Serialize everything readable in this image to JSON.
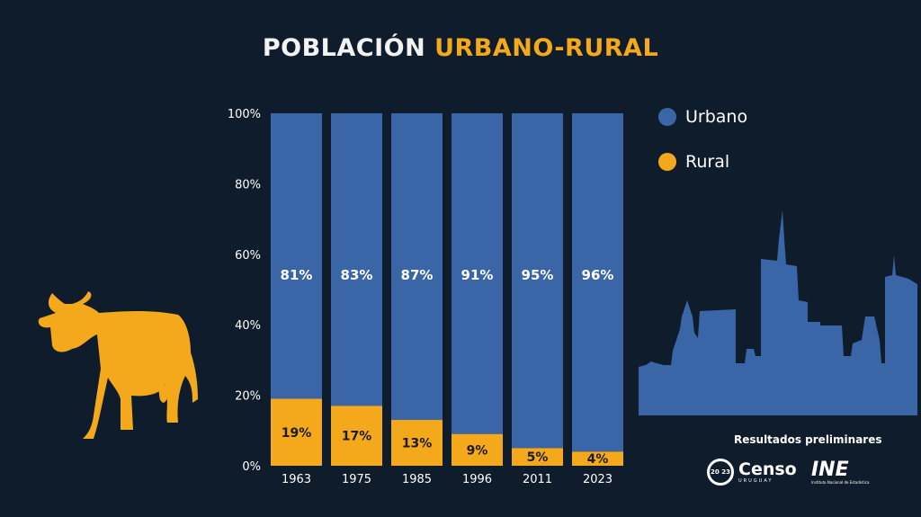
{
  "title": {
    "part1": "POBLACIÓN",
    "part2": "URBANO-RURAL"
  },
  "colors": {
    "background": "#0f1c2b",
    "urbano": "#3a65a6",
    "rural": "#f4a91c",
    "text": "#ffffff"
  },
  "legend": {
    "urbano": "Urbano",
    "rural": "Rural"
  },
  "footer": {
    "prelim": "Resultados preliminares",
    "censo_year": "20 23",
    "censo_word": "Censo",
    "censo_sub": "URUGUAY",
    "ine_word": "INE",
    "ine_sub": "Instituto Nacional de Estadística"
  },
  "icons": [
    "cow-icon",
    "city-skyline-icon",
    "censo-logo",
    "ine-logo"
  ],
  "chart_data": {
    "type": "bar",
    "stacked": true,
    "categories": [
      "1963",
      "1975",
      "1985",
      "1996",
      "2011",
      "2023"
    ],
    "series": [
      {
        "name": "Rural",
        "values": [
          19,
          17,
          13,
          9,
          5,
          4
        ],
        "labels": [
          "19%",
          "17%",
          "13%",
          "9%",
          "5%",
          "4%"
        ]
      },
      {
        "name": "Urbano",
        "values": [
          81,
          83,
          87,
          91,
          95,
          96
        ],
        "labels": [
          "81%",
          "83%",
          "87%",
          "91%",
          "95%",
          "96%"
        ]
      }
    ],
    "yticks": [
      "0%",
      "20%",
      "40%",
      "60%",
      "80%",
      "100%"
    ],
    "ylim": [
      0,
      100
    ],
    "grid": false,
    "legend_position": "right"
  }
}
